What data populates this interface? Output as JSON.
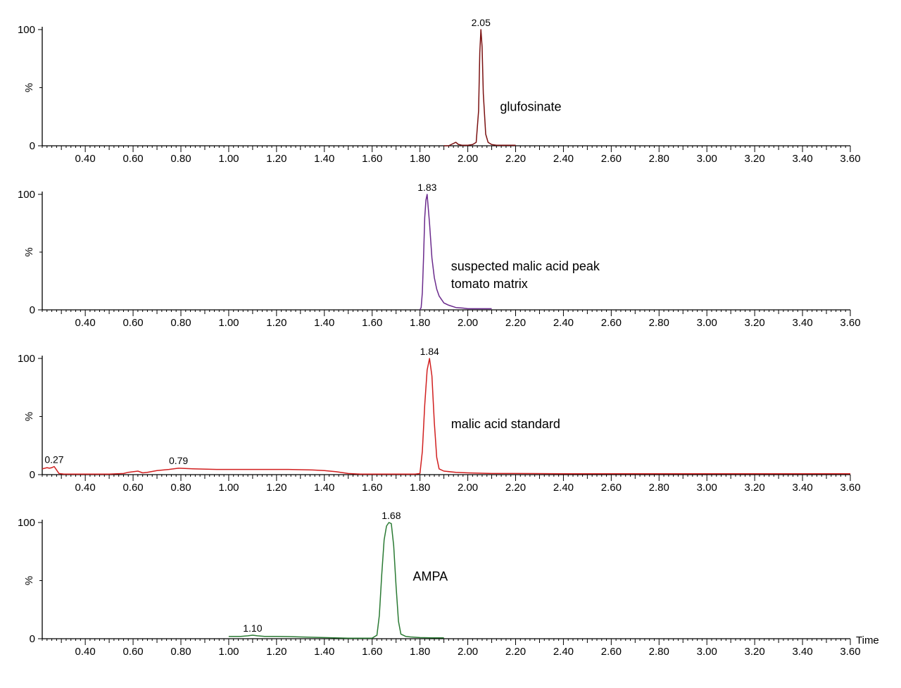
{
  "chart_data": [
    {
      "type": "line",
      "color": "#7a1010",
      "ylabel": "%",
      "y_ticks": [
        "100",
        "0"
      ],
      "x_tick_labels": [
        "0.40",
        "0.60",
        "0.80",
        "1.00",
        "1.20",
        "1.40",
        "1.60",
        "1.80",
        "2.00",
        "2.20",
        "2.40",
        "2.60",
        "2.80",
        "3.00",
        "3.20",
        "3.40",
        "3.60"
      ],
      "xlabel": "",
      "xlim": [
        0.22,
        3.6
      ],
      "ylim": [
        0,
        100
      ],
      "peak_labels": [
        {
          "text": "2.05",
          "x": 2.055,
          "y": 100
        }
      ],
      "annotations": [
        {
          "text": "glufosinate",
          "x": 2.135,
          "y": 30
        }
      ],
      "x": [
        1.9,
        1.92,
        1.935,
        1.95,
        1.96,
        1.975,
        2.0,
        2.02,
        2.035,
        2.045,
        2.05,
        2.055,
        2.06,
        2.065,
        2.075,
        2.085,
        2.1,
        2.12,
        2.15,
        2.2
      ],
      "y": [
        0,
        0,
        1.5,
        3,
        1.2,
        0.5,
        0.5,
        1,
        3,
        30,
        80,
        100,
        85,
        45,
        10,
        3,
        1,
        0.5,
        0.5,
        0.5
      ]
    },
    {
      "type": "line",
      "color": "#6a2a8c",
      "ylabel": "%",
      "y_ticks": [
        "100",
        "0"
      ],
      "x_tick_labels": [
        "0.40",
        "0.60",
        "0.80",
        "1.00",
        "1.20",
        "1.40",
        "1.60",
        "1.80",
        "2.00",
        "2.20",
        "2.40",
        "2.60",
        "2.80",
        "3.00",
        "3.20",
        "3.40",
        "3.60"
      ],
      "xlabel": "",
      "xlim": [
        0.22,
        3.6
      ],
      "ylim": [
        0,
        100
      ],
      "peak_labels": [
        {
          "text": "1.83",
          "x": 1.83,
          "y": 100
        }
      ],
      "annotations": [
        {
          "text": "suspected malic acid peak",
          "x": 1.93,
          "y": 34
        },
        {
          "text": "tomato matrix",
          "x": 1.93,
          "y": 19
        }
      ],
      "x": [
        1.8,
        1.805,
        1.81,
        1.815,
        1.82,
        1.825,
        1.83,
        1.84,
        1.85,
        1.86,
        1.87,
        1.88,
        1.9,
        1.92,
        1.95,
        1.98,
        2.0,
        2.05,
        2.1
      ],
      "y": [
        0,
        2,
        15,
        45,
        80,
        95,
        100,
        75,
        45,
        28,
        18,
        12,
        6,
        4,
        2,
        1.5,
        1,
        1,
        1
      ]
    },
    {
      "type": "line",
      "color": "#d11f1f",
      "ylabel": "%",
      "y_ticks": [
        "100",
        "0"
      ],
      "x_tick_labels": [
        "0.40",
        "0.60",
        "0.80",
        "1.00",
        "1.20",
        "1.40",
        "1.60",
        "1.80",
        "2.00",
        "2.20",
        "2.40",
        "2.60",
        "2.80",
        "3.00",
        "3.20",
        "3.40",
        "3.60"
      ],
      "xlabel": "",
      "xlim": [
        0.22,
        3.6
      ],
      "ylim": [
        0,
        100
      ],
      "peak_labels": [
        {
          "text": "0.27",
          "x": 0.27,
          "y": 7
        },
        {
          "text": "0.79",
          "x": 0.79,
          "y": 6
        },
        {
          "text": "1.84",
          "x": 1.84,
          "y": 100
        }
      ],
      "annotations": [
        {
          "text": "malic acid standard",
          "x": 1.93,
          "y": 40
        }
      ],
      "x": [
        0.22,
        0.24,
        0.25,
        0.26,
        0.27,
        0.28,
        0.29,
        0.31,
        0.35,
        0.4,
        0.5,
        0.56,
        0.58,
        0.6,
        0.62,
        0.64,
        0.66,
        0.7,
        0.75,
        0.79,
        0.85,
        0.95,
        1.05,
        1.15,
        1.25,
        1.35,
        1.4,
        1.45,
        1.5,
        1.55,
        1.6,
        1.7,
        1.78,
        1.8,
        1.81,
        1.82,
        1.83,
        1.84,
        1.85,
        1.86,
        1.87,
        1.88,
        1.9,
        1.95,
        2.0,
        2.1,
        2.2,
        2.4,
        2.6,
        2.8,
        3.0,
        3.2,
        3.4,
        3.6
      ],
      "y": [
        5,
        6,
        5.5,
        6,
        7,
        4,
        1,
        0.5,
        0.5,
        0.5,
        0.5,
        1,
        2,
        2.5,
        3,
        1.5,
        2,
        3.5,
        4.5,
        5.5,
        5,
        4.5,
        4.5,
        4.5,
        4.5,
        4,
        3.5,
        2.5,
        1,
        0.5,
        0.5,
        0.5,
        0.5,
        1,
        20,
        60,
        90,
        100,
        85,
        45,
        15,
        5,
        3,
        2,
        1.5,
        1,
        1,
        0.8,
        0.8,
        0.8,
        0.8,
        0.8,
        0.8,
        0.8
      ]
    },
    {
      "type": "line",
      "color": "#2a7a33",
      "ylabel": "%",
      "y_ticks": [
        "100",
        "0"
      ],
      "x_tick_labels": [
        "0.40",
        "0.60",
        "0.80",
        "1.00",
        "1.20",
        "1.40",
        "1.60",
        "1.80",
        "2.00",
        "2.20",
        "2.40",
        "2.60",
        "2.80",
        "3.00",
        "3.20",
        "3.40",
        "3.60"
      ],
      "xlabel": "Time",
      "xlim": [
        0.22,
        3.6
      ],
      "ylim": [
        0,
        100
      ],
      "peak_labels": [
        {
          "text": "1.10",
          "x": 1.1,
          "y": 3
        },
        {
          "text": "1.68",
          "x": 1.68,
          "y": 100
        }
      ],
      "annotations": [
        {
          "text": "AMPA",
          "x": 1.77,
          "y": 50
        }
      ],
      "x": [
        1.0,
        1.05,
        1.08,
        1.1,
        1.12,
        1.15,
        1.2,
        1.25,
        1.3,
        1.4,
        1.5,
        1.6,
        1.62,
        1.63,
        1.64,
        1.65,
        1.66,
        1.67,
        1.68,
        1.69,
        1.7,
        1.71,
        1.72,
        1.74,
        1.76,
        1.8,
        1.85,
        1.9
      ],
      "y": [
        2,
        2,
        2.5,
        3,
        2.5,
        2,
        2,
        1.8,
        1.5,
        1,
        0.5,
        0.5,
        3,
        20,
        55,
        85,
        97,
        100,
        99,
        80,
        45,
        15,
        4,
        2,
        1.5,
        1,
        0.8,
        0.8
      ]
    }
  ]
}
